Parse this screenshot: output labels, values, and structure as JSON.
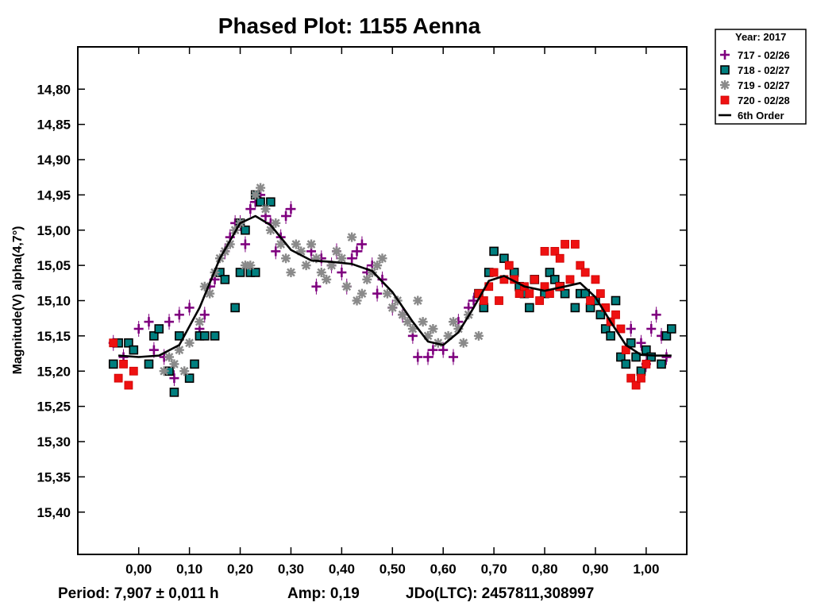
{
  "chart_data": {
    "type": "scatter",
    "title": "Phased Plot: 1155 Aenna",
    "ylabel": "Magnitude(V) alpha(4,7°)",
    "xlabel": "",
    "xlim": [
      -0.12,
      1.08
    ],
    "ylim": [
      15.46,
      14.74
    ],
    "y_inverted": true,
    "x_ticks": [
      0.0,
      0.1,
      0.2,
      0.3,
      0.4,
      0.5,
      0.6,
      0.7,
      0.8,
      0.9,
      1.0
    ],
    "x_tick_labels": [
      "0,00",
      "0,10",
      "0,20",
      "0,30",
      "0,40",
      "0,50",
      "0,60",
      "0,70",
      "0,80",
      "0,90",
      "1,00"
    ],
    "y_ticks": [
      14.8,
      14.85,
      14.9,
      14.95,
      15.0,
      15.05,
      15.1,
      15.15,
      15.2,
      15.25,
      15.3,
      15.35,
      15.4
    ],
    "y_tick_labels": [
      "14,80",
      "14,85",
      "14,90",
      "14,95",
      "15,00",
      "15,05",
      "15,10",
      "15,15",
      "15,20",
      "15,25",
      "15,30",
      "15,35",
      "15,40"
    ],
    "legend": {
      "title": "Year: 2017",
      "position": "outside-top-right",
      "entries": [
        {
          "label": "717 - 02/26",
          "marker": "plus",
          "color": "#7F007F"
        },
        {
          "label": "718 - 02/27",
          "marker": "square-teal",
          "color": "#007F7F"
        },
        {
          "label": "719 - 02/27",
          "marker": "star",
          "color": "#808080"
        },
        {
          "label": "720 - 02/28",
          "marker": "square",
          "color": "#FF0000"
        },
        {
          "label": "6th Order",
          "marker": "line",
          "color": "#000000"
        }
      ]
    },
    "footer": {
      "period": "Period: 7,907 ± 0,011 h",
      "amp": "Amp: 0,19",
      "jdo": "JDo(LTC): 2457811,308997"
    },
    "series": [
      {
        "name": "717 - 02/26",
        "points": [
          [
            -0.05,
            15.16
          ],
          [
            -0.03,
            15.18
          ],
          [
            0.0,
            15.14
          ],
          [
            0.02,
            15.13
          ],
          [
            0.03,
            15.17
          ],
          [
            0.05,
            15.18
          ],
          [
            0.06,
            15.13
          ],
          [
            0.07,
            15.21
          ],
          [
            0.08,
            15.12
          ],
          [
            0.1,
            15.11
          ],
          [
            0.12,
            15.14
          ],
          [
            0.13,
            15.12
          ],
          [
            0.14,
            15.08
          ],
          [
            0.15,
            15.07
          ],
          [
            0.17,
            15.03
          ],
          [
            0.18,
            15.01
          ],
          [
            0.19,
            14.99
          ],
          [
            0.2,
            14.99
          ],
          [
            0.21,
            15.02
          ],
          [
            0.22,
            14.97
          ],
          [
            0.23,
            14.96
          ],
          [
            0.24,
            14.95
          ],
          [
            0.25,
            14.98
          ],
          [
            0.26,
            14.99
          ],
          [
            0.27,
            15.03
          ],
          [
            0.28,
            15.01
          ],
          [
            0.29,
            14.98
          ],
          [
            0.3,
            14.97
          ],
          [
            0.34,
            15.03
          ],
          [
            0.35,
            15.08
          ],
          [
            0.36,
            15.04
          ],
          [
            0.38,
            15.05
          ],
          [
            0.39,
            15.03
          ],
          [
            0.4,
            15.06
          ],
          [
            0.41,
            15.08
          ],
          [
            0.42,
            15.04
          ],
          [
            0.43,
            15.03
          ],
          [
            0.44,
            15.02
          ],
          [
            0.45,
            15.06
          ],
          [
            0.46,
            15.05
          ],
          [
            0.47,
            15.09
          ],
          [
            0.48,
            15.07
          ],
          [
            0.5,
            15.11
          ],
          [
            0.52,
            15.12
          ],
          [
            0.54,
            15.15
          ],
          [
            0.55,
            15.18
          ],
          [
            0.57,
            15.18
          ],
          [
            0.58,
            15.17
          ],
          [
            0.6,
            15.17
          ],
          [
            0.62,
            15.18
          ],
          [
            0.63,
            15.13
          ],
          [
            0.65,
            15.11
          ],
          [
            0.66,
            15.1
          ],
          [
            0.97,
            15.14
          ],
          [
            0.99,
            15.16
          ],
          [
            1.0,
            15.19
          ],
          [
            1.01,
            15.14
          ],
          [
            1.02,
            15.12
          ],
          [
            1.03,
            15.15
          ],
          [
            1.04,
            15.18
          ]
        ]
      },
      {
        "name": "718 - 02/27",
        "points": [
          [
            -0.05,
            15.19
          ],
          [
            -0.04,
            15.16
          ],
          [
            -0.02,
            15.16
          ],
          [
            -0.01,
            15.17
          ],
          [
            0.02,
            15.19
          ],
          [
            0.03,
            15.15
          ],
          [
            0.04,
            15.14
          ],
          [
            0.06,
            15.2
          ],
          [
            0.07,
            15.23
          ],
          [
            0.08,
            15.15
          ],
          [
            0.1,
            15.21
          ],
          [
            0.11,
            15.19
          ],
          [
            0.12,
            15.15
          ],
          [
            0.13,
            15.15
          ],
          [
            0.15,
            15.15
          ],
          [
            0.16,
            15.06
          ],
          [
            0.17,
            15.07
          ],
          [
            0.19,
            15.11
          ],
          [
            0.2,
            15.06
          ],
          [
            0.2,
            14.99
          ],
          [
            0.21,
            15.0
          ],
          [
            0.22,
            15.06
          ],
          [
            0.23,
            14.95
          ],
          [
            0.23,
            15.06
          ],
          [
            0.24,
            14.96
          ],
          [
            0.26,
            14.96
          ],
          [
            0.67,
            15.09
          ],
          [
            0.68,
            15.11
          ],
          [
            0.69,
            15.06
          ],
          [
            0.7,
            15.03
          ],
          [
            0.72,
            15.04
          ],
          [
            0.74,
            15.06
          ],
          [
            0.75,
            15.08
          ],
          [
            0.76,
            15.09
          ],
          [
            0.77,
            15.11
          ],
          [
            0.78,
            15.07
          ],
          [
            0.8,
            15.09
          ],
          [
            0.81,
            15.06
          ],
          [
            0.82,
            15.07
          ],
          [
            0.83,
            15.08
          ],
          [
            0.84,
            15.09
          ],
          [
            0.86,
            15.11
          ],
          [
            0.87,
            15.09
          ],
          [
            0.88,
            15.09
          ],
          [
            0.89,
            15.11
          ],
          [
            0.9,
            15.1
          ],
          [
            0.91,
            15.12
          ],
          [
            0.92,
            15.14
          ],
          [
            0.93,
            15.15
          ],
          [
            0.94,
            15.1
          ],
          [
            0.95,
            15.18
          ],
          [
            0.96,
            15.19
          ],
          [
            0.97,
            15.16
          ],
          [
            0.98,
            15.18
          ],
          [
            0.99,
            15.2
          ],
          [
            1.0,
            15.17
          ],
          [
            1.01,
            15.18
          ],
          [
            1.03,
            15.19
          ],
          [
            1.04,
            15.15
          ],
          [
            1.05,
            15.14
          ]
        ]
      },
      {
        "name": "719 - 02/27",
        "points": [
          [
            0.05,
            15.2
          ],
          [
            0.06,
            15.18
          ],
          [
            0.07,
            15.19
          ],
          [
            0.08,
            15.17
          ],
          [
            0.09,
            15.2
          ],
          [
            0.1,
            15.16
          ],
          [
            0.12,
            15.13
          ],
          [
            0.13,
            15.08
          ],
          [
            0.14,
            15.09
          ],
          [
            0.15,
            15.06
          ],
          [
            0.16,
            15.04
          ],
          [
            0.17,
            15.03
          ],
          [
            0.18,
            15.02
          ],
          [
            0.19,
            15.0
          ],
          [
            0.2,
            14.99
          ],
          [
            0.21,
            15.05
          ],
          [
            0.22,
            15.05
          ],
          [
            0.23,
            14.95
          ],
          [
            0.24,
            14.94
          ],
          [
            0.25,
            14.97
          ],
          [
            0.26,
            15.0
          ],
          [
            0.27,
            14.99
          ],
          [
            0.28,
            15.02
          ],
          [
            0.29,
            15.04
          ],
          [
            0.3,
            15.06
          ],
          [
            0.31,
            15.02
          ],
          [
            0.32,
            15.03
          ],
          [
            0.33,
            15.05
          ],
          [
            0.34,
            15.02
          ],
          [
            0.35,
            15.04
          ],
          [
            0.36,
            15.06
          ],
          [
            0.37,
            15.07
          ],
          [
            0.38,
            15.05
          ],
          [
            0.39,
            15.03
          ],
          [
            0.4,
            15.04
          ],
          [
            0.41,
            15.08
          ],
          [
            0.42,
            15.01
          ],
          [
            0.43,
            15.1
          ],
          [
            0.44,
            15.09
          ],
          [
            0.45,
            15.07
          ],
          [
            0.46,
            15.06
          ],
          [
            0.47,
            15.05
          ],
          [
            0.48,
            15.04
          ],
          [
            0.49,
            15.09
          ],
          [
            0.5,
            15.11
          ],
          [
            0.51,
            15.1
          ],
          [
            0.52,
            15.12
          ],
          [
            0.53,
            15.13
          ],
          [
            0.54,
            15.14
          ],
          [
            0.55,
            15.1
          ],
          [
            0.56,
            15.13
          ],
          [
            0.57,
            15.15
          ],
          [
            0.58,
            15.14
          ],
          [
            0.59,
            15.16
          ],
          [
            0.61,
            15.15
          ],
          [
            0.62,
            15.13
          ],
          [
            0.63,
            15.14
          ],
          [
            0.64,
            15.16
          ],
          [
            0.65,
            15.12
          ],
          [
            0.67,
            15.15
          ]
        ]
      },
      {
        "name": "720 - 02/28",
        "points": [
          [
            -0.05,
            15.16
          ],
          [
            -0.04,
            15.21
          ],
          [
            -0.03,
            15.19
          ],
          [
            -0.02,
            15.22
          ],
          [
            -0.01,
            15.2
          ],
          [
            0.67,
            15.09
          ],
          [
            0.68,
            15.1
          ],
          [
            0.69,
            15.08
          ],
          [
            0.7,
            15.06
          ],
          [
            0.71,
            15.1
          ],
          [
            0.72,
            15.07
          ],
          [
            0.73,
            15.05
          ],
          [
            0.74,
            15.07
          ],
          [
            0.75,
            15.09
          ],
          [
            0.76,
            15.08
          ],
          [
            0.77,
            15.09
          ],
          [
            0.78,
            15.07
          ],
          [
            0.79,
            15.1
          ],
          [
            0.8,
            15.08
          ],
          [
            0.8,
            15.03
          ],
          [
            0.81,
            15.09
          ],
          [
            0.82,
            15.03
          ],
          [
            0.83,
            15.04
          ],
          [
            0.83,
            15.08
          ],
          [
            0.84,
            15.02
          ],
          [
            0.85,
            15.07
          ],
          [
            0.86,
            15.02
          ],
          [
            0.87,
            15.05
          ],
          [
            0.88,
            15.06
          ],
          [
            0.89,
            15.1
          ],
          [
            0.9,
            15.07
          ],
          [
            0.91,
            15.09
          ],
          [
            0.92,
            15.11
          ],
          [
            0.93,
            15.13
          ],
          [
            0.94,
            15.12
          ],
          [
            0.95,
            15.14
          ],
          [
            0.96,
            15.17
          ],
          [
            0.97,
            15.21
          ],
          [
            0.98,
            15.22
          ],
          [
            0.99,
            15.21
          ],
          [
            1.0,
            15.19
          ]
        ]
      }
    ],
    "fit_curve": {
      "name": "6th Order",
      "points": [
        [
          -0.04,
          15.178
        ],
        [
          0.0,
          15.18
        ],
        [
          0.04,
          15.178
        ],
        [
          0.08,
          15.163
        ],
        [
          0.12,
          15.11
        ],
        [
          0.16,
          15.04
        ],
        [
          0.2,
          14.99
        ],
        [
          0.23,
          14.98
        ],
        [
          0.26,
          14.993
        ],
        [
          0.3,
          15.028
        ],
        [
          0.34,
          15.043
        ],
        [
          0.38,
          15.045
        ],
        [
          0.42,
          15.048
        ],
        [
          0.46,
          15.058
        ],
        [
          0.5,
          15.088
        ],
        [
          0.54,
          15.13
        ],
        [
          0.57,
          15.158
        ],
        [
          0.6,
          15.163
        ],
        [
          0.63,
          15.145
        ],
        [
          0.66,
          15.11
        ],
        [
          0.69,
          15.072
        ],
        [
          0.72,
          15.065
        ],
        [
          0.76,
          15.08
        ],
        [
          0.8,
          15.086
        ],
        [
          0.84,
          15.08
        ],
        [
          0.87,
          15.075
        ],
        [
          0.9,
          15.095
        ],
        [
          0.93,
          15.13
        ],
        [
          0.96,
          15.163
        ],
        [
          0.99,
          15.177
        ],
        [
          1.02,
          15.178
        ],
        [
          1.05,
          15.178
        ]
      ]
    }
  }
}
